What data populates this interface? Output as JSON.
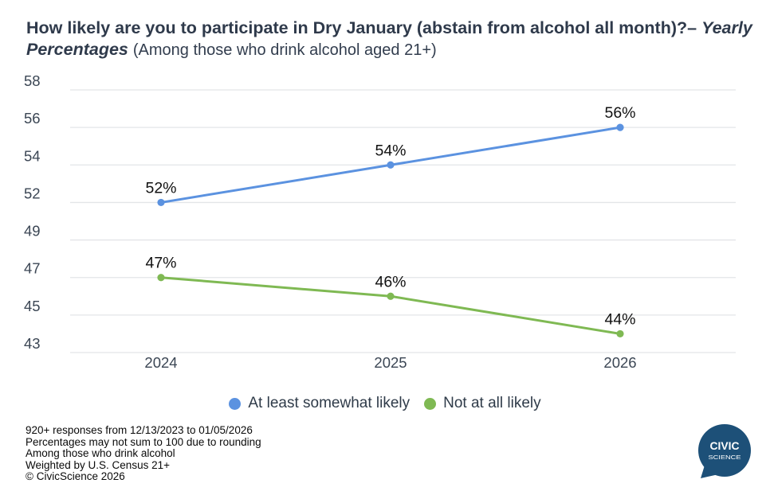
{
  "title": {
    "main": "How likely are you to participate in Dry January (abstain from alcohol all month)?–",
    "emphasis": "Yearly Percentages",
    "suffix": "(Among those who drink alcohol aged 21+)"
  },
  "chart_data": {
    "type": "line",
    "categories": [
      "2024",
      "2025",
      "2026"
    ],
    "series": [
      {
        "name": "At least somewhat likely",
        "values": [
          52,
          54,
          56
        ],
        "labels": [
          "52%",
          "54%",
          "56%"
        ],
        "color": "#5b92e0"
      },
      {
        "name": "Not at all likely",
        "values": [
          47,
          46,
          44
        ],
        "labels": [
          "47%",
          "46%",
          "44%"
        ],
        "color": "#7fb953"
      }
    ],
    "yticks": [
      58,
      56,
      54,
      52,
      49,
      47,
      45,
      43
    ],
    "xlabel": "",
    "ylabel": "",
    "grid": true,
    "legend_position": "bottom",
    "gridline_color": "#e3e5e8",
    "axis_label_color": "#3b4654",
    "data_label_color": "#111111"
  },
  "footnotes": [
    "920+ responses from 12/13/2023 to 01/05/2026",
    "Percentages may not sum to 100 due to rounding",
    "Among those who drink alcohol",
    "Weighted by U.S. Census 21+",
    "© CivicScience 2026"
  ],
  "logo": {
    "line1": "CIVIC",
    "line2": "SCIENCE",
    "color": "#1d5078"
  }
}
